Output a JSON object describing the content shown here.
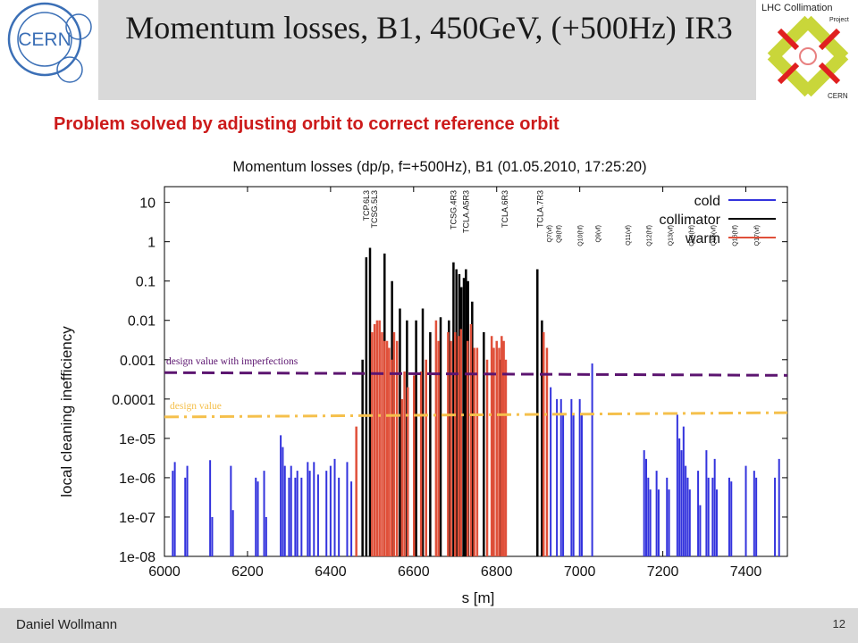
{
  "slide": {
    "title": "Momentum losses, B1, 450GeV, (+500Hz) IR3",
    "subtitle": "Problem solved by adjusting orbit to correct reference orbit",
    "author": "Daniel Wollmann",
    "page_number": "12",
    "logos": {
      "left": "CERN",
      "right_lines": [
        "LHC Collimation",
        "Project",
        "CERN"
      ]
    }
  },
  "chart_data": {
    "type": "bar",
    "title": "Momentum losses (dp/p, f=+500Hz), B1 (01.05.2010, 17:25:20)",
    "xlabel": "s [m]",
    "ylabel": "local cleaning inefficiency",
    "xlim": [
      6000,
      7500
    ],
    "ylim": [
      1e-08,
      20
    ],
    "yscale": "log",
    "x_ticks": [
      6000,
      6200,
      6400,
      6600,
      6800,
      7000,
      7200,
      7400
    ],
    "y_tick_labels": [
      "10",
      "1",
      "0.1",
      "0.01",
      "0.001",
      "0.0001",
      "1e-05",
      "1e-06",
      "1e-07",
      "1e-08"
    ],
    "legend": {
      "position": "top-right"
    },
    "colors": {
      "cold": "#3333dd",
      "collimator": "#000000",
      "warm": "#e0503a",
      "design_imperfections": "#5c1570",
      "design": "#f5c04c"
    },
    "series": [
      {
        "name": "cold",
        "points": [
          [
            6020,
            1.5e-06
          ],
          [
            6025,
            2.5e-06
          ],
          [
            6050,
            1e-06
          ],
          [
            6055,
            2e-06
          ],
          [
            6110,
            2.8e-06
          ],
          [
            6115,
            1e-07
          ],
          [
            6160,
            2e-06
          ],
          [
            6165,
            1.5e-07
          ],
          [
            6220,
            1e-06
          ],
          [
            6225,
            8e-07
          ],
          [
            6240,
            1.5e-06
          ],
          [
            6245,
            1e-07
          ],
          [
            6280,
            1.2e-05
          ],
          [
            6285,
            6e-06
          ],
          [
            6290,
            2e-06
          ],
          [
            6300,
            1e-06
          ],
          [
            6305,
            2e-06
          ],
          [
            6315,
            1e-06
          ],
          [
            6320,
            1.5e-06
          ],
          [
            6330,
            1e-06
          ],
          [
            6345,
            2.5e-06
          ],
          [
            6350,
            1.5e-06
          ],
          [
            6360,
            2.5e-06
          ],
          [
            6370,
            1.2e-06
          ],
          [
            6390,
            1.5e-06
          ],
          [
            6400,
            2e-06
          ],
          [
            6410,
            3e-06
          ],
          [
            6420,
            1e-06
          ],
          [
            6440,
            2.5e-06
          ],
          [
            6450,
            8e-07
          ],
          [
            6930,
            0.0002
          ],
          [
            6945,
            0.0001
          ],
          [
            6955,
            0.0001
          ],
          [
            6960,
            4e-05
          ],
          [
            6980,
            0.0001
          ],
          [
            6985,
            4e-05
          ],
          [
            7000,
            0.0001
          ],
          [
            7005,
            4e-05
          ],
          [
            7030,
            0.0008
          ],
          [
            7155,
            5e-06
          ],
          [
            7160,
            3e-06
          ],
          [
            7165,
            1e-06
          ],
          [
            7170,
            5e-07
          ],
          [
            7185,
            1.5e-06
          ],
          [
            7190,
            5e-07
          ],
          [
            7210,
            1e-06
          ],
          [
            7215,
            5e-07
          ],
          [
            7235,
            4e-05
          ],
          [
            7240,
            1e-05
          ],
          [
            7245,
            5e-06
          ],
          [
            7250,
            2e-05
          ],
          [
            7255,
            2e-06
          ],
          [
            7260,
            1e-06
          ],
          [
            7265,
            5e-07
          ],
          [
            7285,
            1.5e-06
          ],
          [
            7290,
            2e-07
          ],
          [
            7305,
            5e-06
          ],
          [
            7310,
            1e-06
          ],
          [
            7320,
            1e-06
          ],
          [
            7325,
            3e-06
          ],
          [
            7330,
            5e-07
          ],
          [
            7360,
            1e-06
          ],
          [
            7365,
            8e-07
          ],
          [
            7400,
            2e-06
          ],
          [
            7420,
            1.5e-06
          ],
          [
            7425,
            1e-06
          ],
          [
            7470,
            1e-06
          ],
          [
            7480,
            3e-06
          ]
        ]
      },
      {
        "name": "collimator",
        "points": [
          [
            6477,
            0.001
          ],
          [
            6486,
            0.4
          ],
          [
            6495,
            0.7
          ],
          [
            6530,
            0.5
          ],
          [
            6548,
            0.1
          ],
          [
            6567,
            0.02
          ],
          [
            6584,
            0.01
          ],
          [
            6606,
            0.01
          ],
          [
            6622,
            0.02
          ],
          [
            6640,
            0.005
          ],
          [
            6665,
            0.012
          ],
          [
            6685,
            0.01
          ],
          [
            6696,
            0.3
          ],
          [
            6703,
            0.2
          ],
          [
            6710,
            0.15
          ],
          [
            6715,
            0.07
          ],
          [
            6721,
            0.12
          ],
          [
            6726,
            0.2
          ],
          [
            6731,
            0.1
          ],
          [
            6741,
            0.03
          ],
          [
            6769,
            0.005
          ],
          [
            6792,
            0.0005
          ],
          [
            6810,
            0.001
          ],
          [
            6898,
            0.2
          ],
          [
            6909,
            0.01
          ]
        ]
      },
      {
        "name": "warm",
        "points": [
          [
            6462,
            2e-05
          ],
          [
            6500,
            0.005
          ],
          [
            6506,
            0.008
          ],
          [
            6512,
            0.01
          ],
          [
            6518,
            0.01
          ],
          [
            6524,
            0.005
          ],
          [
            6530,
            0.003
          ],
          [
            6536,
            0.003
          ],
          [
            6541,
            0.002
          ],
          [
            6547,
            0.001
          ],
          [
            6553,
            0.005
          ],
          [
            6560,
            0.003
          ],
          [
            6572,
            0.0001
          ],
          [
            6578,
            0.0005
          ],
          [
            6586,
            0.0002
          ],
          [
            6601,
            0.0004
          ],
          [
            6618,
            0.0005
          ],
          [
            6630,
            0.001
          ],
          [
            6654,
            0.01
          ],
          [
            6660,
            0.003
          ],
          [
            6683,
            0.005
          ],
          [
            6690,
            0.003
          ],
          [
            6700,
            0.005
          ],
          [
            6708,
            0.004
          ],
          [
            6714,
            0.006
          ],
          [
            6730,
            0.003
          ],
          [
            6738,
            0.008
          ],
          [
            6746,
            0.002
          ],
          [
            6753,
            0.002
          ],
          [
            6777,
            0.001
          ],
          [
            6788,
            0.004
          ],
          [
            6793,
            0.002
          ],
          [
            6800,
            0.003
          ],
          [
            6806,
            0.002
          ],
          [
            6812,
            0.004
          ],
          [
            6817,
            0.003
          ],
          [
            6822,
            0.001
          ],
          [
            6913,
            0.005
          ],
          [
            6921,
            0.002
          ]
        ]
      }
    ],
    "reference_lines": [
      {
        "label": "design value with imperfections",
        "y_start": 0.00047,
        "y_end": 0.0004,
        "style": "dashed"
      },
      {
        "label": "design value",
        "y_start": 3.5e-05,
        "y_end": 4.5e-05,
        "style": "dash-dot"
      }
    ],
    "element_labels": [
      {
        "label": "TCP.6L3",
        "x": 6486,
        "size": "large"
      },
      {
        "label": "TCSG.5L3",
        "x": 6506,
        "size": "large"
      },
      {
        "label": "TCSG.4R3",
        "x": 6696,
        "size": "large"
      },
      {
        "label": "TCLA.A5R3",
        "x": 6726,
        "size": "large"
      },
      {
        "label": "TCLA.6R3",
        "x": 6820,
        "size": "large"
      },
      {
        "label": "TCLA.7R3",
        "x": 6905,
        "size": "large"
      },
      {
        "label": "Q7(vf)",
        "x": 6925,
        "size": "small"
      },
      {
        "label": "Q8(hf)",
        "x": 6948,
        "size": "small"
      },
      {
        "label": "Q10(hf)",
        "x": 7000,
        "size": "small"
      },
      {
        "label": "Q9(vf)",
        "x": 7043,
        "size": "small"
      },
      {
        "label": "Q11(vf)",
        "x": 7115,
        "size": "small"
      },
      {
        "label": "Q12(hf)",
        "x": 7165,
        "size": "small"
      },
      {
        "label": "Q13(vf)",
        "x": 7217,
        "size": "small"
      },
      {
        "label": "Q14(hf)",
        "x": 7268,
        "size": "small"
      },
      {
        "label": "Q15(vf)",
        "x": 7320,
        "size": "small"
      },
      {
        "label": "Q16(hf)",
        "x": 7372,
        "size": "small"
      },
      {
        "label": "Q17(vf)",
        "x": 7425,
        "size": "small"
      }
    ]
  }
}
